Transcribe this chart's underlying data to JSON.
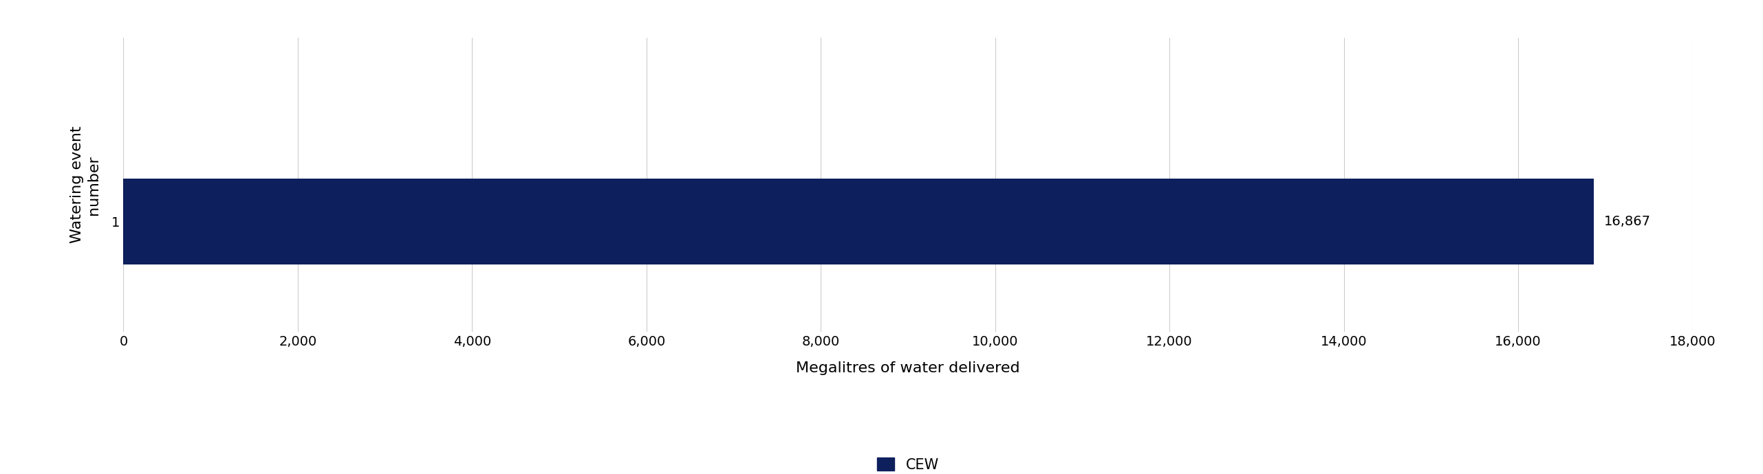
{
  "categories": [
    1
  ],
  "values": [
    16867
  ],
  "bar_color": "#0d1f5c",
  "label_text": "16,867",
  "xlabel": "Megalitres of water delivered",
  "ylabel": "Watering event\nnumber",
  "xlim": [
    0,
    18000
  ],
  "xticks": [
    0,
    2000,
    4000,
    6000,
    8000,
    10000,
    12000,
    14000,
    16000,
    18000
  ],
  "legend_label": "CEW",
  "legend_color": "#0d1f5c",
  "bar_height": 0.35,
  "ylim": [
    0.55,
    1.75
  ],
  "background_color": "#ffffff",
  "grid_color": "#cccccc",
  "xlabel_fontsize": 16,
  "ylabel_fontsize": 16,
  "tick_fontsize": 14,
  "label_fontsize": 14,
  "legend_fontsize": 15
}
